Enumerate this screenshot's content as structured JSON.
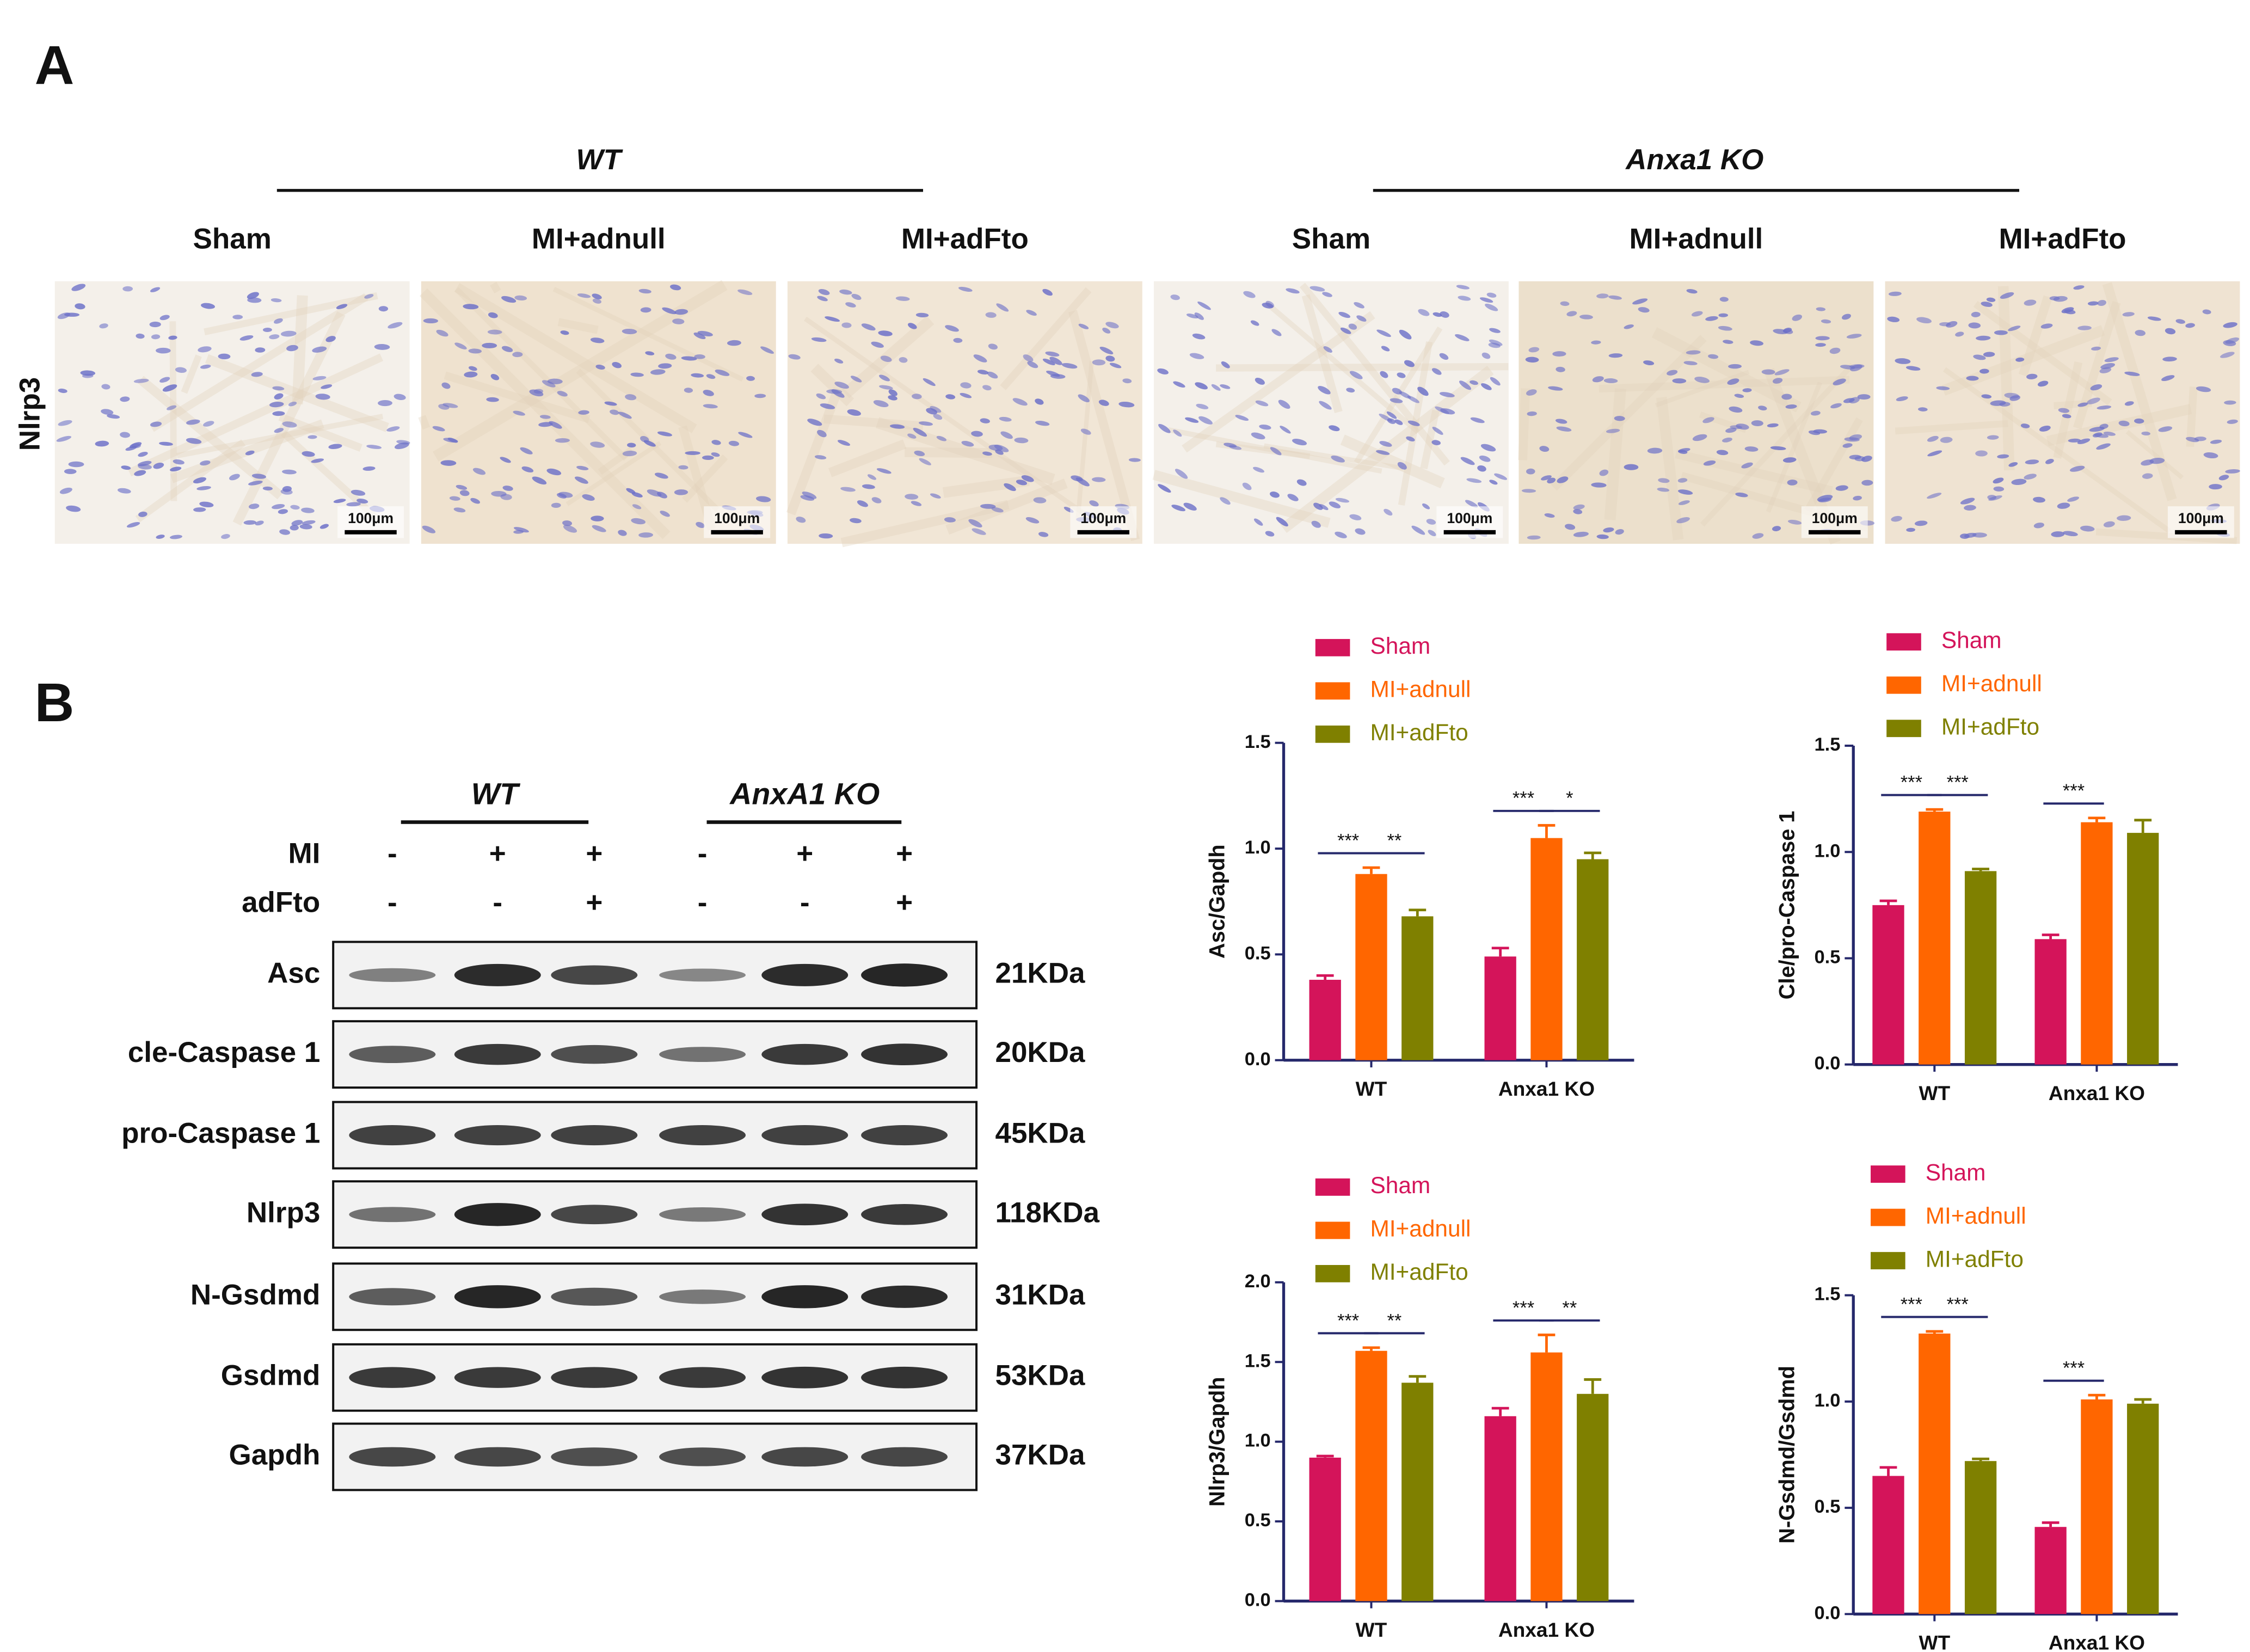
{
  "panel_a": {
    "label": "A",
    "groups": [
      "WT",
      "Anxa1 KO"
    ],
    "columns": [
      "Sham",
      "MI+adnull",
      "MI+adFto",
      "Sham",
      "MI+adnull",
      "MI+adFto"
    ],
    "row_label": "Nlrp3",
    "scale_bar": "100μm"
  },
  "panel_b": {
    "label": "B",
    "groups": [
      "WT",
      "AnxA1 KO"
    ],
    "conditions": [
      {
        "name": "MI",
        "signs": [
          "-",
          "+",
          "+",
          "-",
          "+",
          "+"
        ]
      },
      {
        "name": "adFto",
        "signs": [
          "-",
          "-",
          "+",
          "-",
          "-",
          "+"
        ]
      }
    ],
    "proteins": [
      {
        "name": "Asc",
        "size": "21KDa"
      },
      {
        "name": "cle-Caspase 1",
        "size": "20KDa"
      },
      {
        "name": "pro-Caspase 1",
        "size": "45KDa"
      },
      {
        "name": "Nlrp3",
        "size": "118KDa"
      },
      {
        "name": "N-Gsdmd",
        "size": "31KDa"
      },
      {
        "name": "Gsdmd",
        "size": "53KDa"
      },
      {
        "name": "Gapdh",
        "size": "37KDa"
      }
    ]
  },
  "chart_data": [
    {
      "type": "bar",
      "ylabel": "Asc/Gapdh",
      "categories": [
        "WT",
        "Anxa1 KO"
      ],
      "series": [
        {
          "name": "Sham",
          "color": "#d4145a",
          "values": [
            0.38,
            0.49
          ],
          "errors": [
            0.02,
            0.04
          ]
        },
        {
          "name": "MI+adnull",
          "color": "#ff6600",
          "values": [
            0.88,
            1.05
          ],
          "errors": [
            0.03,
            0.06
          ]
        },
        {
          "name": "MI+adFto",
          "color": "#7f8000",
          "values": [
            0.68,
            0.95
          ],
          "errors": [
            0.03,
            0.03
          ]
        }
      ],
      "ylim": [
        0,
        1.5
      ],
      "yticks": [
        {
          "value": 0,
          "label": "0.0"
        },
        0.5,
        {
          "value": 1,
          "label": "1.0"
        },
        1.5
      ],
      "annotations": [
        {
          "label": "***",
          "category": 0,
          "pair": [
            0,
            1
          ]
        },
        {
          "label": "**",
          "category": 0,
          "pair": [
            1,
            2
          ]
        },
        {
          "label": "***",
          "category": 1,
          "pair": [
            0,
            1
          ]
        },
        {
          "label": "*",
          "category": 1,
          "pair": [
            1,
            2
          ]
        }
      ]
    },
    {
      "type": "bar",
      "ylabel": "Cle/pro-Caspase 1",
      "categories": [
        "WT",
        "Anxa1 KO"
      ],
      "series": [
        {
          "name": "Sham",
          "color": "#d4145a",
          "values": [
            0.75,
            0.59
          ],
          "errors": [
            0.02,
            0.02
          ]
        },
        {
          "name": "MI+adnull",
          "color": "#ff6600",
          "values": [
            1.19,
            1.14
          ],
          "errors": [
            0.01,
            0.02
          ]
        },
        {
          "name": "MI+adFto",
          "color": "#7f8000",
          "values": [
            0.91,
            1.09
          ],
          "errors": [
            0.01,
            0.06
          ]
        }
      ],
      "ylim": [
        0,
        1.5
      ],
      "yticks": [
        {
          "value": 0,
          "label": "0.0"
        },
        0.5,
        {
          "value": 1,
          "label": "1.0"
        },
        1.5
      ],
      "annotations": [
        {
          "label": "***",
          "category": 0,
          "pair": [
            0,
            1
          ]
        },
        {
          "label": "***",
          "category": 0,
          "pair": [
            1,
            2
          ]
        },
        {
          "label": "***",
          "category": 1,
          "pair": [
            0,
            1
          ]
        }
      ]
    },
    {
      "type": "bar",
      "ylabel": "Nlrp3/Gapdh",
      "categories": [
        "WT",
        "Anxa1 KO"
      ],
      "series": [
        {
          "name": "Sham",
          "color": "#d4145a",
          "values": [
            0.9,
            1.16
          ],
          "errors": [
            0.01,
            0.05
          ]
        },
        {
          "name": "MI+adnull",
          "color": "#ff6600",
          "values": [
            1.57,
            1.56
          ],
          "errors": [
            0.02,
            0.11
          ]
        },
        {
          "name": "MI+adFto",
          "color": "#7f8000",
          "values": [
            1.37,
            1.3
          ],
          "errors": [
            0.04,
            0.09
          ]
        }
      ],
      "ylim": [
        0,
        2
      ],
      "yticks": [
        {
          "value": 0,
          "label": "0.0"
        },
        0.5,
        {
          "value": 1,
          "label": "1.0"
        },
        1.5,
        {
          "value": 2,
          "label": "2.0"
        }
      ],
      "annotations": [
        {
          "label": "***",
          "category": 0,
          "pair": [
            0,
            1
          ]
        },
        {
          "label": "**",
          "category": 0,
          "pair": [
            1,
            2
          ]
        },
        {
          "label": "***",
          "category": 1,
          "pair": [
            0,
            1
          ]
        },
        {
          "label": "**",
          "category": 1,
          "pair": [
            1,
            2
          ]
        }
      ]
    },
    {
      "type": "bar",
      "ylabel": "N-Gsdmd/Gsdmd",
      "categories": [
        "WT",
        "Anxa1 KO"
      ],
      "series": [
        {
          "name": "Sham",
          "color": "#d4145a",
          "values": [
            0.65,
            0.41
          ],
          "errors": [
            0.04,
            0.02
          ]
        },
        {
          "name": "MI+adnull",
          "color": "#ff6600",
          "values": [
            1.32,
            1.01
          ],
          "errors": [
            0.01,
            0.02
          ]
        },
        {
          "name": "MI+adFto",
          "color": "#7f8000",
          "values": [
            0.72,
            0.99
          ],
          "errors": [
            0.01,
            0.02
          ]
        }
      ],
      "ylim": [
        0,
        1.5
      ],
      "yticks": [
        {
          "value": 0,
          "label": "0.0"
        },
        0.5,
        {
          "value": 1,
          "label": "1.0"
        },
        1.5
      ],
      "annotations": [
        {
          "label": "***",
          "category": 0,
          "pair": [
            0,
            1
          ]
        },
        {
          "label": "***",
          "category": 0,
          "pair": [
            1,
            2
          ]
        },
        {
          "label": "***",
          "category": 1,
          "pair": [
            0,
            1
          ]
        }
      ]
    }
  ]
}
